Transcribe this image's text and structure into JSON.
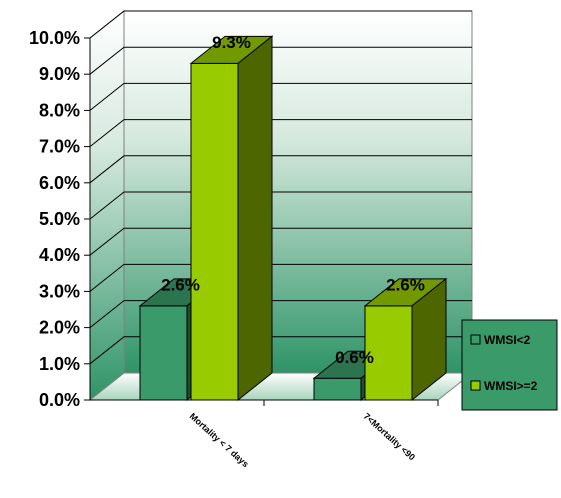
{
  "chart_data": {
    "type": "bar",
    "title": "",
    "xlabel": "",
    "ylabel": "",
    "categories": [
      "Mortality < 7 days",
      "7<Mortality <90"
    ],
    "series": [
      {
        "name": "WMSI<2",
        "values": [
          2.6,
          0.6
        ],
        "labels": [
          "2.6%",
          "0.6%"
        ],
        "color": "#3a9a6a"
      },
      {
        "name": "WMSI>=2",
        "values": [
          9.3,
          2.6
        ],
        "labels": [
          "9.3%",
          "2.6%"
        ],
        "color": "#99cc00"
      }
    ],
    "ylim": [
      0,
      10
    ],
    "yticks": [
      "0.0%",
      "1.0%",
      "2.0%",
      "3.0%",
      "4.0%",
      "5.0%",
      "6.0%",
      "7.0%",
      "8.0%",
      "9.0%",
      "10.0%"
    ],
    "grid": true,
    "legend": "right",
    "style": "3d-column"
  }
}
